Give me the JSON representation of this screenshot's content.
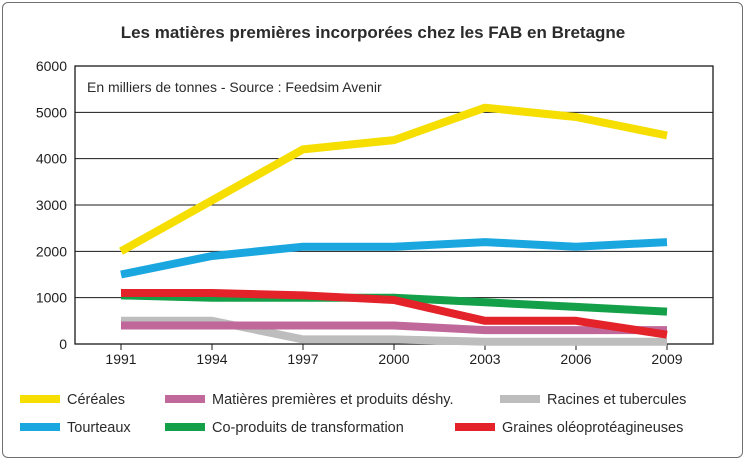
{
  "chart_data": {
    "type": "line",
    "title": "Les matières premières incorporées chez les FAB en Bretagne",
    "subtitle": "En milliers de tonnes - Source : Feedsim Avenir",
    "xlabel": "",
    "ylabel": "",
    "x": [
      "1991",
      "1994",
      "1997",
      "2000",
      "2003",
      "2006",
      "2009"
    ],
    "y_ticks": [
      "0",
      "1000",
      "2000",
      "3000",
      "4000",
      "5000",
      "6000"
    ],
    "ylim": [
      0,
      6000
    ],
    "grid": true,
    "legend_position": "bottom",
    "series": [
      {
        "name": "Céréales",
        "color": "#f5de00",
        "values": [
          2000,
          3100,
          4200,
          4400,
          5100,
          4900,
          4500
        ]
      },
      {
        "name": "Tourteaux",
        "color": "#1aa7e0",
        "values": [
          1500,
          1900,
          2100,
          2100,
          2200,
          2100,
          2200
        ]
      },
      {
        "name": "Matières premières et produits déshy.",
        "color": "#c0689a",
        "values": [
          400,
          400,
          400,
          400,
          300,
          300,
          300
        ]
      },
      {
        "name": "Co-produits de transformation",
        "color": "#13a048",
        "values": [
          1050,
          1000,
          1000,
          1000,
          900,
          800,
          700
        ]
      },
      {
        "name": "Racines et tubercules",
        "color": "#bdbdbd",
        "values": [
          500,
          500,
          100,
          100,
          50,
          50,
          50
        ]
      },
      {
        "name": "Graines oléoprotéagineuses",
        "color": "#e3222a",
        "values": [
          1100,
          1100,
          1050,
          950,
          500,
          500,
          200
        ]
      }
    ]
  }
}
